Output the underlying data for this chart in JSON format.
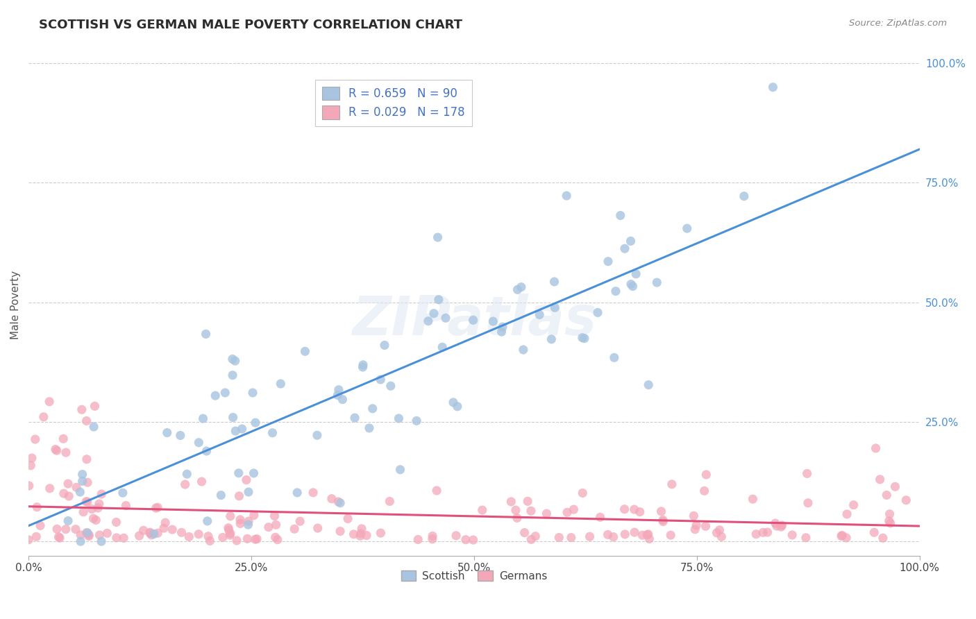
{
  "title": "SCOTTISH VS GERMAN MALE POVERTY CORRELATION CHART",
  "source": "Source: ZipAtlas.com",
  "ylabel": "Male Poverty",
  "xlim": [
    0,
    1
  ],
  "ylim": [
    0,
    1.0
  ],
  "scottish_R": 0.659,
  "scottish_N": 90,
  "german_R": 0.029,
  "german_N": 178,
  "scottish_color": "#a8c4e0",
  "german_color": "#f4a7b9",
  "scottish_line_color": "#4a90d9",
  "german_line_color": "#e0507a",
  "background_color": "#ffffff",
  "grid_color": "#cccccc",
  "title_color": "#2c2c2c",
  "legend_color": "#4472c4",
  "right_tick_color": "#4a90d9"
}
